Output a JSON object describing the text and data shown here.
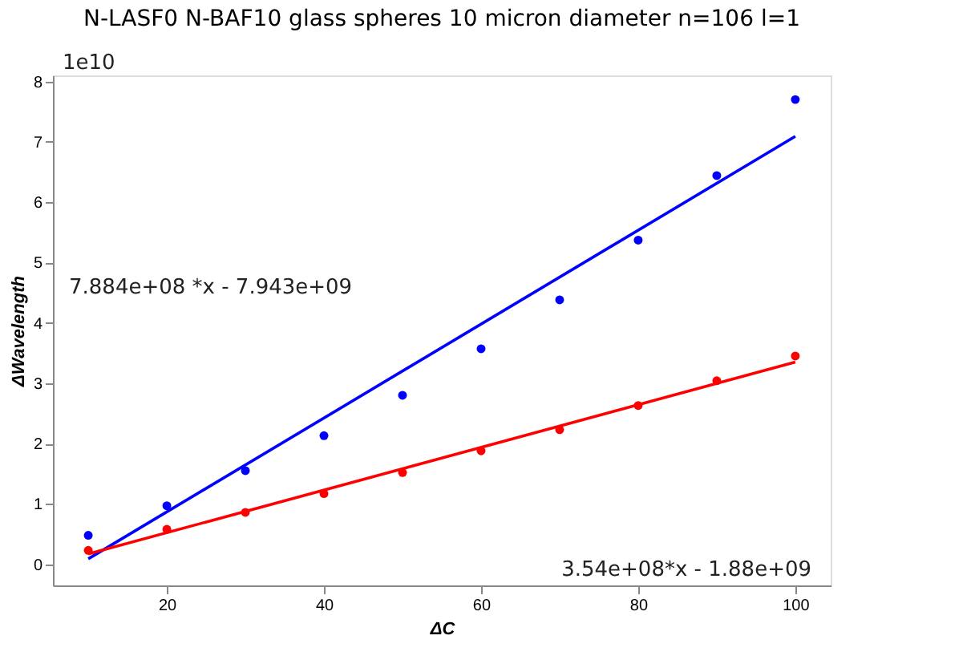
{
  "chart_data": {
    "type": "scatter",
    "title": "N-LASF0 N-BAF10 glass spheres 10 micron diameter n=106 l=1",
    "xlabel": "ΔC",
    "ylabel": "ΔWavelength",
    "annotations": [
      "7.884e+08 *x - 7.943e+09",
      "3.54e+08*x - 1.88e+09",
      "1e10"
    ],
    "xlim": [
      5.5,
      104.5
    ],
    "xticks": [
      20,
      40,
      60,
      80,
      100
    ],
    "ylim": [
      -0.35,
      8.1
    ],
    "yticks": [
      0,
      1,
      2,
      3,
      4,
      5,
      6,
      7,
      8
    ],
    "marker": "circle",
    "line_style": "solid",
    "series": [
      {
        "color": "#0000ff",
        "x": [
          10,
          20,
          30,
          40,
          50,
          60,
          70,
          80,
          90,
          100
        ],
        "values": [
          0.48,
          0.97,
          1.55,
          2.13,
          2.8,
          3.57,
          4.38,
          5.37,
          6.44,
          7.7
        ]
      },
      {
        "color": "#ff0000",
        "x": [
          10,
          20,
          30,
          40,
          50,
          60,
          70,
          80,
          90,
          100
        ],
        "values": [
          0.23,
          0.58,
          0.86,
          1.17,
          1.52,
          1.88,
          2.23,
          2.63,
          3.04,
          3.45
        ]
      },
      {
        "type": "line",
        "marker": "none",
        "color": "#0000ff",
        "x": [
          10,
          100
        ],
        "values": [
          0.09,
          7.09
        ]
      },
      {
        "type": "line",
        "marker": "none",
        "color": "#ff0000",
        "x": [
          10,
          100
        ],
        "values": [
          0.17,
          3.35
        ]
      }
    ]
  }
}
